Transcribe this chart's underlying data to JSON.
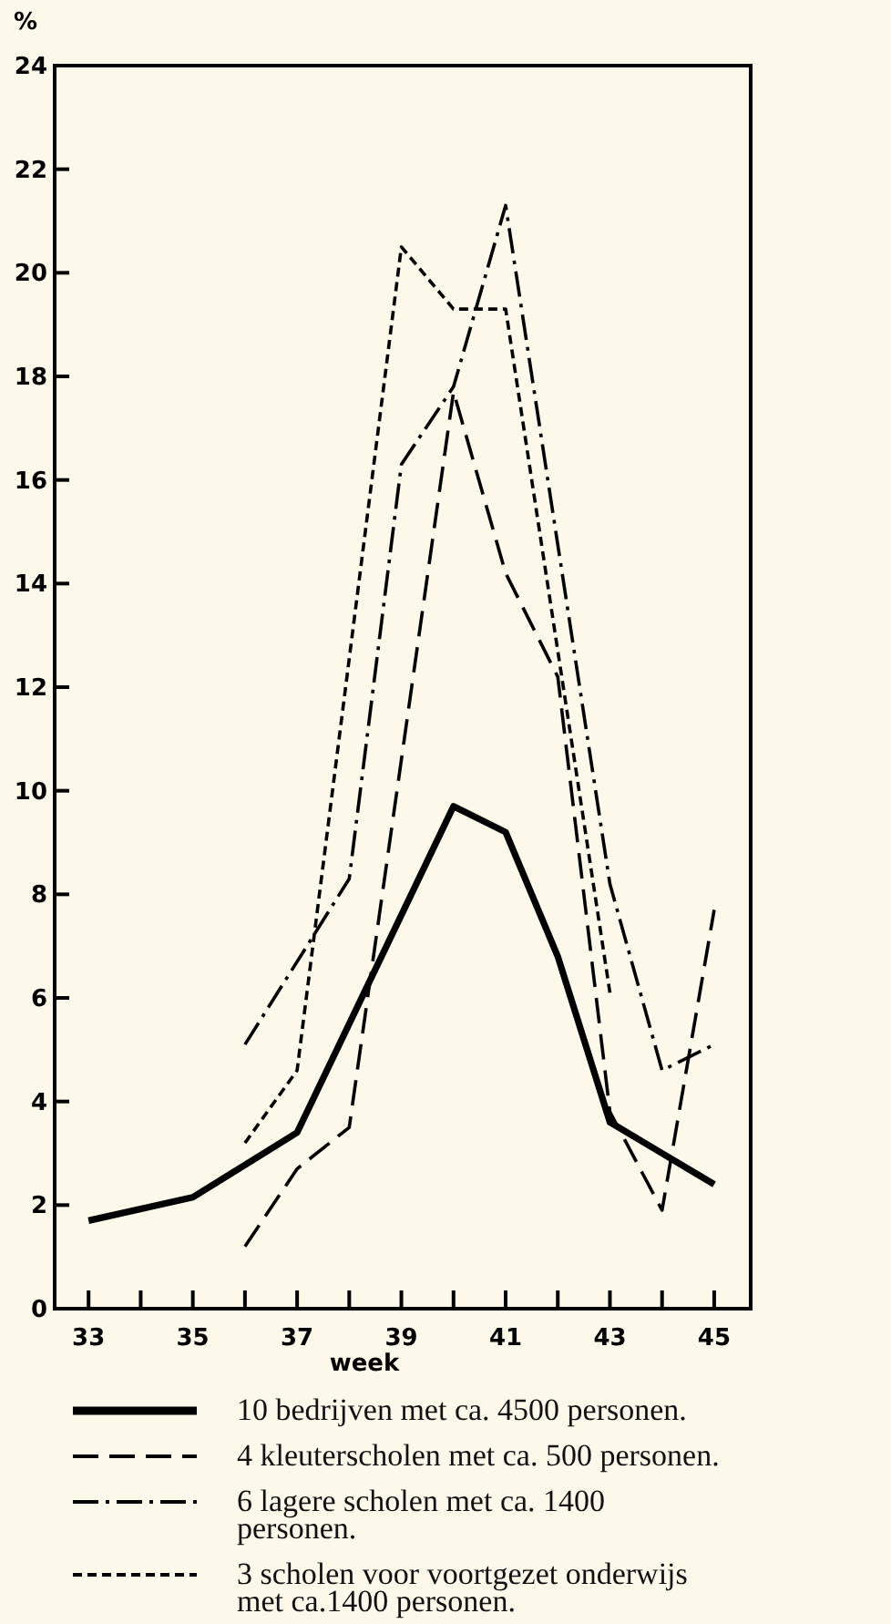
{
  "chart_data": {
    "type": "line",
    "xlabel": "week",
    "ylabel": "%",
    "xlim": [
      32.35,
      45.7
    ],
    "ylim": [
      0,
      24
    ],
    "xticks": [
      33,
      {
        "value": 34,
        "label": null
      },
      35,
      {
        "value": 36,
        "label": null
      },
      37,
      {
        "value": 38,
        "label": null
      },
      39,
      {
        "value": 40,
        "label": null
      },
      41,
      {
        "value": 42,
        "label": null
      },
      43,
      {
        "value": 44,
        "label": null
      },
      45
    ],
    "yticks": [
      0,
      2,
      4,
      6,
      8,
      10,
      12,
      14,
      16,
      18,
      20,
      22,
      24
    ],
    "grid": false,
    "legend": "bottom",
    "marker": "none",
    "series": [
      {
        "name": "10 bedrijven met ca. 4500 personen.",
        "color": "#000000",
        "line_style": "solid",
        "x": [
          33,
          35,
          37,
          40,
          41,
          42,
          43,
          44,
          45
        ],
        "values": [
          1.7,
          2.15,
          3.4,
          9.7,
          9.2,
          6.8,
          3.6,
          3.0,
          2.4
        ]
      },
      {
        "name": "4 kleuterscholen met ca. 500 personen.",
        "color": "#000000",
        "line_style": "dashed",
        "x": [
          36,
          37,
          38,
          40,
          41,
          42,
          43,
          44,
          45
        ],
        "values": [
          1.2,
          2.7,
          3.5,
          17.7,
          14.2,
          12.2,
          3.8,
          1.9,
          7.7
        ]
      },
      {
        "name": "6 lagere scholen met ca. 1400 personen.",
        "color": "#000000",
        "line_style": "dashdot",
        "x": [
          36,
          38,
          39,
          40,
          41,
          43,
          44,
          45
        ],
        "values": [
          5.1,
          8.3,
          16.3,
          17.8,
          21.3,
          8.2,
          4.6,
          5.1
        ]
      },
      {
        "name": "3 scholen voor voortgezet onderwijs met ca.1400 personen.",
        "color": "#000000",
        "line_style": "dotted",
        "x": [
          36,
          37,
          39,
          40,
          41,
          43
        ],
        "values": [
          3.2,
          4.6,
          20.5,
          19.3,
          19.3,
          6.1
        ]
      }
    ]
  }
}
